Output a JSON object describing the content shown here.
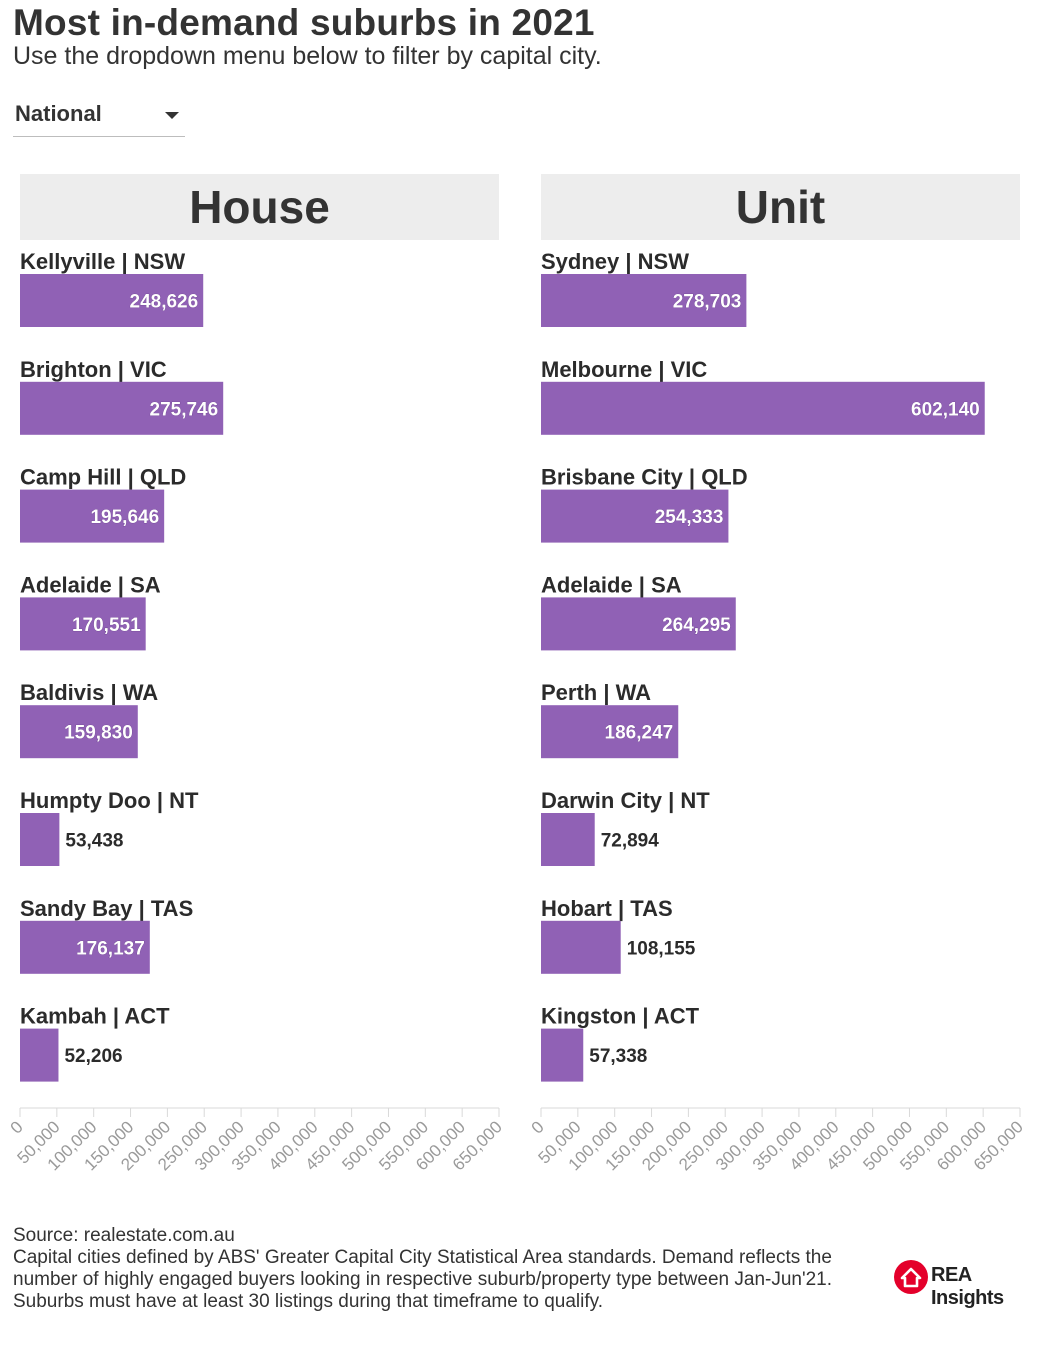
{
  "header": {
    "title": "Most in-demand suburbs in 2021",
    "subtitle": "Use the dropdown menu below to filter by capital city."
  },
  "filter": {
    "selected": "National"
  },
  "colors": {
    "bar": "#9061b5",
    "header_bg": "#ededed",
    "logo_red": "#e4002b"
  },
  "chart_data": [
    {
      "type": "bar",
      "orientation": "horizontal",
      "title": "House",
      "categories": [
        "Kellyville | NSW",
        "Brighton | VIC",
        "Camp Hill | QLD",
        "Adelaide | SA",
        "Baldivis | WA",
        "Humpty Doo | NT",
        "Sandy Bay | TAS",
        "Kambah | ACT"
      ],
      "values": [
        248626,
        275746,
        195646,
        170551,
        159830,
        53438,
        176137,
        52206
      ],
      "value_labels": [
        "248,626",
        "275,746",
        "195,646",
        "170,551",
        "159,830",
        "53,438",
        "176,137",
        "52,206"
      ],
      "xlim": [
        0,
        650000
      ],
      "xticks": [
        0,
        50000,
        100000,
        150000,
        200000,
        250000,
        300000,
        350000,
        400000,
        450000,
        500000,
        550000,
        600000,
        650000
      ],
      "xtick_labels": [
        "0",
        "50,000",
        "100,000",
        "150,000",
        "200,000",
        "250,000",
        "300,000",
        "350,000",
        "400,000",
        "450,000",
        "500,000",
        "550,000",
        "600,000",
        "650,000"
      ],
      "grid": false
    },
    {
      "type": "bar",
      "orientation": "horizontal",
      "title": "Unit",
      "categories": [
        "Sydney | NSW",
        "Melbourne | VIC",
        "Brisbane City | QLD",
        "Adelaide | SA",
        "Perth | WA",
        "Darwin City | NT",
        "Hobart | TAS",
        "Kingston | ACT"
      ],
      "values": [
        278703,
        602140,
        254333,
        264295,
        186247,
        72894,
        108155,
        57338
      ],
      "value_labels": [
        "278,703",
        "602,140",
        "254,333",
        "264,295",
        "186,247",
        "72,894",
        "108,155",
        "57,338"
      ],
      "xlim": [
        0,
        650000
      ],
      "xticks": [
        0,
        50000,
        100000,
        150000,
        200000,
        250000,
        300000,
        350000,
        400000,
        450000,
        500000,
        550000,
        600000,
        650000
      ],
      "xtick_labels": [
        "0",
        "50,000",
        "100,000",
        "150,000",
        "200,000",
        "250,000",
        "300,000",
        "350,000",
        "400,000",
        "450,000",
        "500,000",
        "550,000",
        "600,000",
        "650,000"
      ],
      "grid": false
    }
  ],
  "footer": {
    "source": "Source: realestate.com.au",
    "note": "Capital cities defined by ABS' Greater Capital City Statistical Area standards. Demand reflects the number of highly engaged buyers looking in respective suburb/property type between Jan-Jun'21. Suburbs must have at least 30 listings during that timeframe to qualify."
  },
  "logo": {
    "text": "REA Insights"
  }
}
